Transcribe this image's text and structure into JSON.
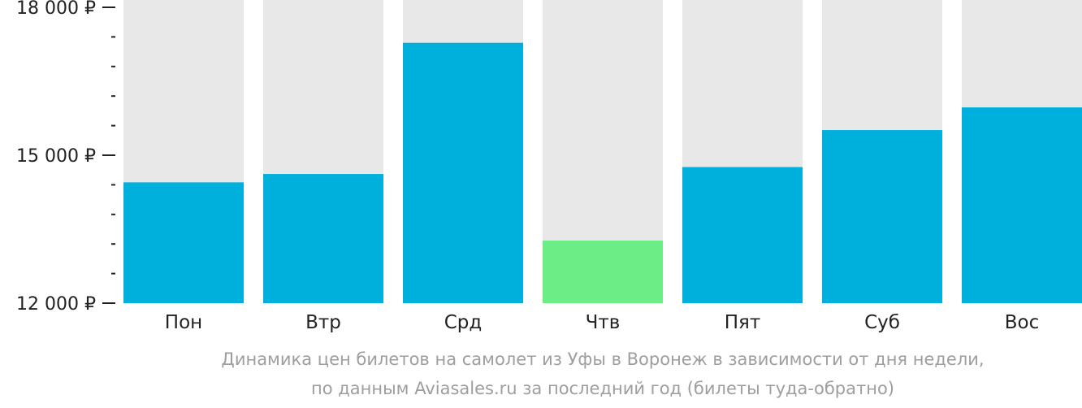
{
  "chart_data": {
    "type": "bar",
    "categories": [
      "Пон",
      "Втр",
      "Срд",
      "Чтв",
      "Пят",
      "Суб",
      "Вос"
    ],
    "values": [
      14450,
      14620,
      17280,
      13270,
      14760,
      15510,
      15970
    ],
    "y_tick_labels": [
      "18 000 ₽",
      "15 000 ₽",
      "12 000 ₽"
    ],
    "y_ticks": [
      18000,
      15000,
      12000
    ],
    "ylim": [
      12000,
      18000
    ],
    "minor_tick_step": 600,
    "highlight_index": 3,
    "colors": {
      "bar": "#00b0dc",
      "highlight": "#6ced86",
      "background_column": "#e8e8e8",
      "axis_text": "#222222",
      "caption": "#9e9e9e"
    },
    "caption": [
      "Динамика цен билетов на самолет из Уфы в Воронеж в зависимости от дня недели,",
      "по данным Aviasales.ru за последний год (билеты туда-обратно)"
    ]
  }
}
